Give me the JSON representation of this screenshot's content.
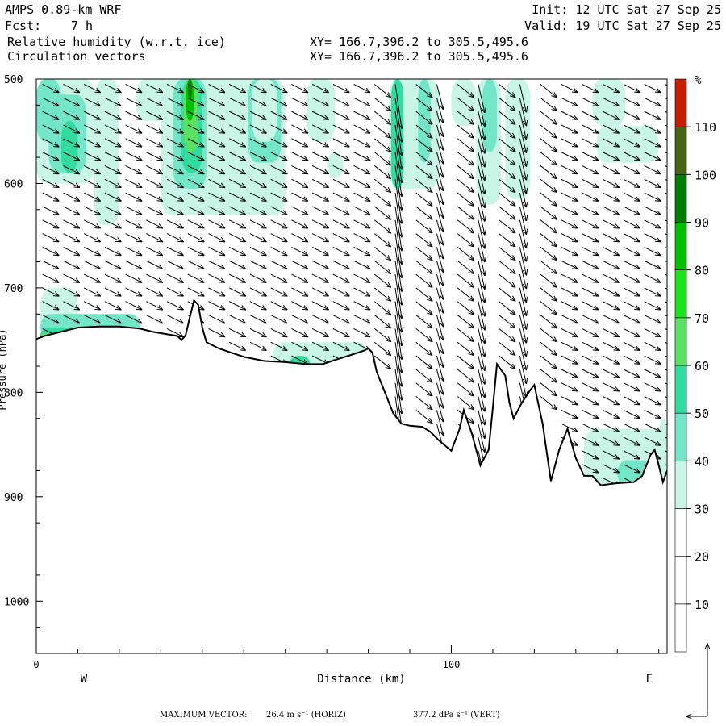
{
  "header": {
    "model": "AMPS 0.89-km WRF",
    "fcst_label": "Fcst:",
    "fcst_value": "7 h",
    "init": "Init: 12 UTC Sat 27 Sep 25",
    "valid": "Valid: 19 UTC Sat 27 Sep 25",
    "field1": "Relative humidity (w.r.t. ice)",
    "field2": "Circulation vectors",
    "xy1": "XY= 166.7,396.2 to 305.5,495.6",
    "xy2": "XY= 166.7,396.2 to 305.5,495.6"
  },
  "footer": {
    "label": "MAXIMUM VECTOR:",
    "horiz": "26.4 m s⁻¹ (HORIZ)",
    "vert": "377.2 dPa s⁻¹ (VERT)"
  },
  "colors": {
    "c30": "#c8f5e6",
    "c40": "#73e6c8",
    "c50": "#32dca0",
    "c60": "#5ae164",
    "c70": "#1ee11e",
    "c80": "#00be00",
    "c90": "#007d00",
    "c100": "#466414",
    "c110": "#c81e00"
  },
  "chart_data": {
    "type": "cross-section",
    "xlabel": "Distance (km)",
    "ylabel": "Pressure (hPa)",
    "xlim": [
      0,
      152
    ],
    "ylim": [
      1050,
      500
    ],
    "x_ticks": [
      0,
      100
    ],
    "y_ticks": [
      500,
      600,
      700,
      800,
      900,
      1000
    ],
    "west_label": "W",
    "east_label": "E",
    "colorbar": {
      "unit": "%",
      "levels": [
        10,
        20,
        30,
        40,
        50,
        60,
        70,
        80,
        90,
        100,
        110
      ],
      "colors": [
        "#ffffff",
        "#ffffff",
        "#ffffff",
        "#c8f5e6",
        "#73e6c8",
        "#32dca0",
        "#5ae164",
        "#1ee11e",
        "#00be00",
        "#007d00",
        "#466414",
        "#c81e00"
      ]
    },
    "terrain_hpa": [
      [
        0,
        749
      ],
      [
        2,
        746
      ],
      [
        6,
        742
      ],
      [
        10,
        738
      ],
      [
        15,
        737
      ],
      [
        20,
        737
      ],
      [
        25,
        739
      ],
      [
        28,
        742
      ],
      [
        31,
        744
      ],
      [
        34,
        746
      ],
      [
        35,
        750
      ],
      [
        36,
        745
      ],
      [
        37,
        728
      ],
      [
        38,
        712
      ],
      [
        39,
        716
      ],
      [
        40,
        738
      ],
      [
        41,
        752
      ],
      [
        44,
        758
      ],
      [
        47,
        762
      ],
      [
        50,
        766
      ],
      [
        55,
        770
      ],
      [
        60,
        771
      ],
      [
        65,
        773
      ],
      [
        69,
        773
      ],
      [
        72,
        769
      ],
      [
        76,
        764
      ],
      [
        79,
        760
      ],
      [
        80,
        758
      ],
      [
        81,
        762
      ],
      [
        82,
        780
      ],
      [
        84,
        800
      ],
      [
        86,
        820
      ],
      [
        88,
        830
      ],
      [
        90,
        832
      ],
      [
        93,
        833
      ],
      [
        95,
        838
      ],
      [
        97,
        846
      ],
      [
        100,
        856
      ],
      [
        102,
        835
      ],
      [
        103,
        817
      ],
      [
        105,
        840
      ],
      [
        107,
        870
      ],
      [
        109,
        855
      ],
      [
        110,
        815
      ],
      [
        111,
        773
      ],
      [
        113,
        784
      ],
      [
        114,
        810
      ],
      [
        115,
        825
      ],
      [
        117,
        810
      ],
      [
        119,
        798
      ],
      [
        120,
        793
      ],
      [
        122,
        830
      ],
      [
        124,
        885
      ],
      [
        126,
        855
      ],
      [
        128,
        835
      ],
      [
        130,
        863
      ],
      [
        132,
        880
      ],
      [
        134,
        880
      ],
      [
        136,
        889
      ],
      [
        140,
        887
      ],
      [
        144,
        886
      ],
      [
        146,
        880
      ],
      [
        148,
        860
      ],
      [
        149,
        855
      ],
      [
        150,
        870
      ],
      [
        151,
        886
      ],
      [
        152,
        875
      ]
    ]
  }
}
